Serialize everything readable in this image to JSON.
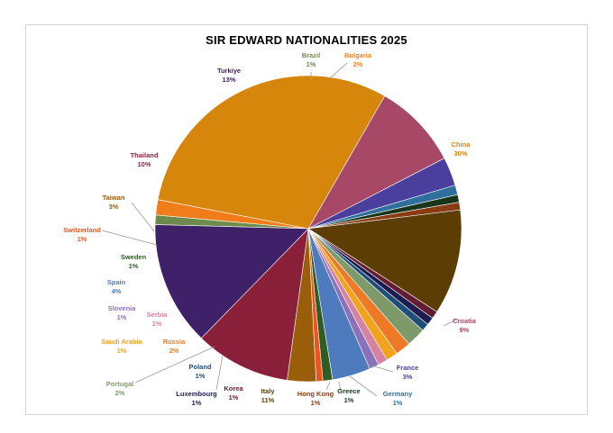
{
  "chart_data": {
    "type": "pie",
    "title": "SIR EDWARD NATIONALITIES 2025",
    "slices": [
      {
        "name": "Brazil",
        "value": 1,
        "label": "1%",
        "color": "#6e8b4e"
      },
      {
        "name": "Bulgaria",
        "value": 1.6,
        "label": "2%",
        "color": "#f07d1a"
      },
      {
        "name": "China",
        "value": 30,
        "label": "30%",
        "color": "#d6860b"
      },
      {
        "name": "Croatia",
        "value": 9,
        "label": "9%",
        "color": "#a64866"
      },
      {
        "name": "France",
        "value": 3,
        "label": "3%",
        "color": "#4a3f9c"
      },
      {
        "name": "Germany",
        "value": 1,
        "label": "1%",
        "color": "#2e6f9e"
      },
      {
        "name": "Greece",
        "value": 0.8,
        "label": "1%",
        "color": "#17361a"
      },
      {
        "name": "Hong Kong",
        "value": 0.8,
        "label": "1%",
        "color": "#8a3b12"
      },
      {
        "name": "Italy",
        "value": 11,
        "label": "11%",
        "color": "#5c3e05"
      },
      {
        "name": "Korea",
        "value": 0.8,
        "label": "1%",
        "color": "#641c32"
      },
      {
        "name": "Luxembourg",
        "value": 0.8,
        "label": "1%",
        "color": "#1c1c50"
      },
      {
        "name": "Poland",
        "value": 0.8,
        "label": "1%",
        "color": "#1f4e79"
      },
      {
        "name": "Portugal",
        "value": 2,
        "label": "2%",
        "color": "#7f9a6a"
      },
      {
        "name": "Russia",
        "value": 1.6,
        "label": "2%",
        "color": "#ee7a25"
      },
      {
        "name": "Saudi Arabia",
        "value": 1.2,
        "label": "1%",
        "color": "#f2a31e"
      },
      {
        "name": "Serbia",
        "value": 1,
        "label": "1%",
        "color": "#d882a2"
      },
      {
        "name": "Slovenia",
        "value": 1,
        "label": "1%",
        "color": "#8a72bb"
      },
      {
        "name": "Spain",
        "value": 4,
        "label": "4%",
        "color": "#4d7bbd"
      },
      {
        "name": "Sweden",
        "value": 1,
        "label": "1%",
        "color": "#2f5c23"
      },
      {
        "name": "Switzerland",
        "value": 0.7,
        "label": "1%",
        "color": "#ec5520"
      },
      {
        "name": "Taiwan",
        "value": 3,
        "label": "3%",
        "color": "#9a5e0a"
      },
      {
        "name": "Thailand",
        "value": 10,
        "label": "10%",
        "color": "#8a1f3a"
      },
      {
        "name": "Turkiye",
        "value": 13,
        "label": "13%",
        "color": "#3e2168"
      }
    ]
  }
}
